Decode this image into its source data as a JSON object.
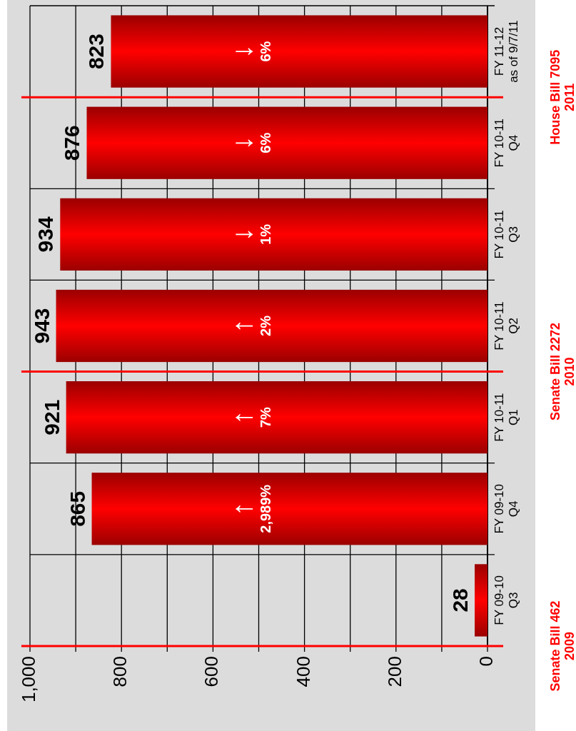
{
  "chart_data": {
    "type": "bar",
    "orientation": "horizontal",
    "categories": [
      "FY 11-12\nas of 9/7/11",
      "FY 10-11\nQ4",
      "FY 10-11\nQ3",
      "FY 10-11\nQ2",
      "FY 10-11\nQ1",
      "FY 09-10\nQ4",
      "FY 09-10\nQ3"
    ],
    "values": [
      823,
      876,
      934,
      943,
      921,
      865,
      28
    ],
    "color": "#ff0000",
    "data_labels": true,
    "xlim": [
      1000,
      0
    ],
    "xticks": [
      {
        "value": 1000,
        "label": "1,000"
      },
      {
        "value": 900,
        "label": null
      },
      {
        "value": 800,
        "label": "800"
      },
      {
        "value": 700,
        "label": null
      },
      {
        "value": 600,
        "label": "600"
      },
      {
        "value": 500,
        "label": null
      },
      {
        "value": 400,
        "label": "400"
      },
      {
        "value": 300,
        "label": null
      },
      {
        "value": 200,
        "label": "200"
      },
      {
        "value": 100,
        "label": null
      },
      0
    ],
    "grid": true,
    "legend": false,
    "annotations": [
      {
        "text": "↓\n6%",
        "y": "FY 11-12\nas of 9/7/11"
      },
      {
        "text": "↓\n6%",
        "y": "FY 10-11\nQ4"
      },
      {
        "text": "↓\n1%",
        "y": "FY 10-11\nQ3"
      },
      {
        "text": "↑\n2%",
        "y": "FY 10-11\nQ2"
      },
      {
        "text": "↑\n7%",
        "y": "FY 10-11\nQ1"
      },
      {
        "text": "↑\n2,989%",
        "y": "FY 09-10\nQ4"
      }
    ],
    "ref_lines": [
      {
        "axis": "y",
        "value": "FY 11-12\nas of 9/7/11",
        "label": "House Bill 7095\n2011",
        "color": "#ff0000"
      },
      {
        "axis": "y",
        "value": "FY 10-11\nQ2",
        "label": "Senate Bill 2272\n2010",
        "color": "#ff0000"
      },
      {
        "axis": "y",
        "value": "FY 09-10\nQ3",
        "label": "Senate Bill 462\n2009",
        "color": "#ff0000"
      }
    ]
  }
}
